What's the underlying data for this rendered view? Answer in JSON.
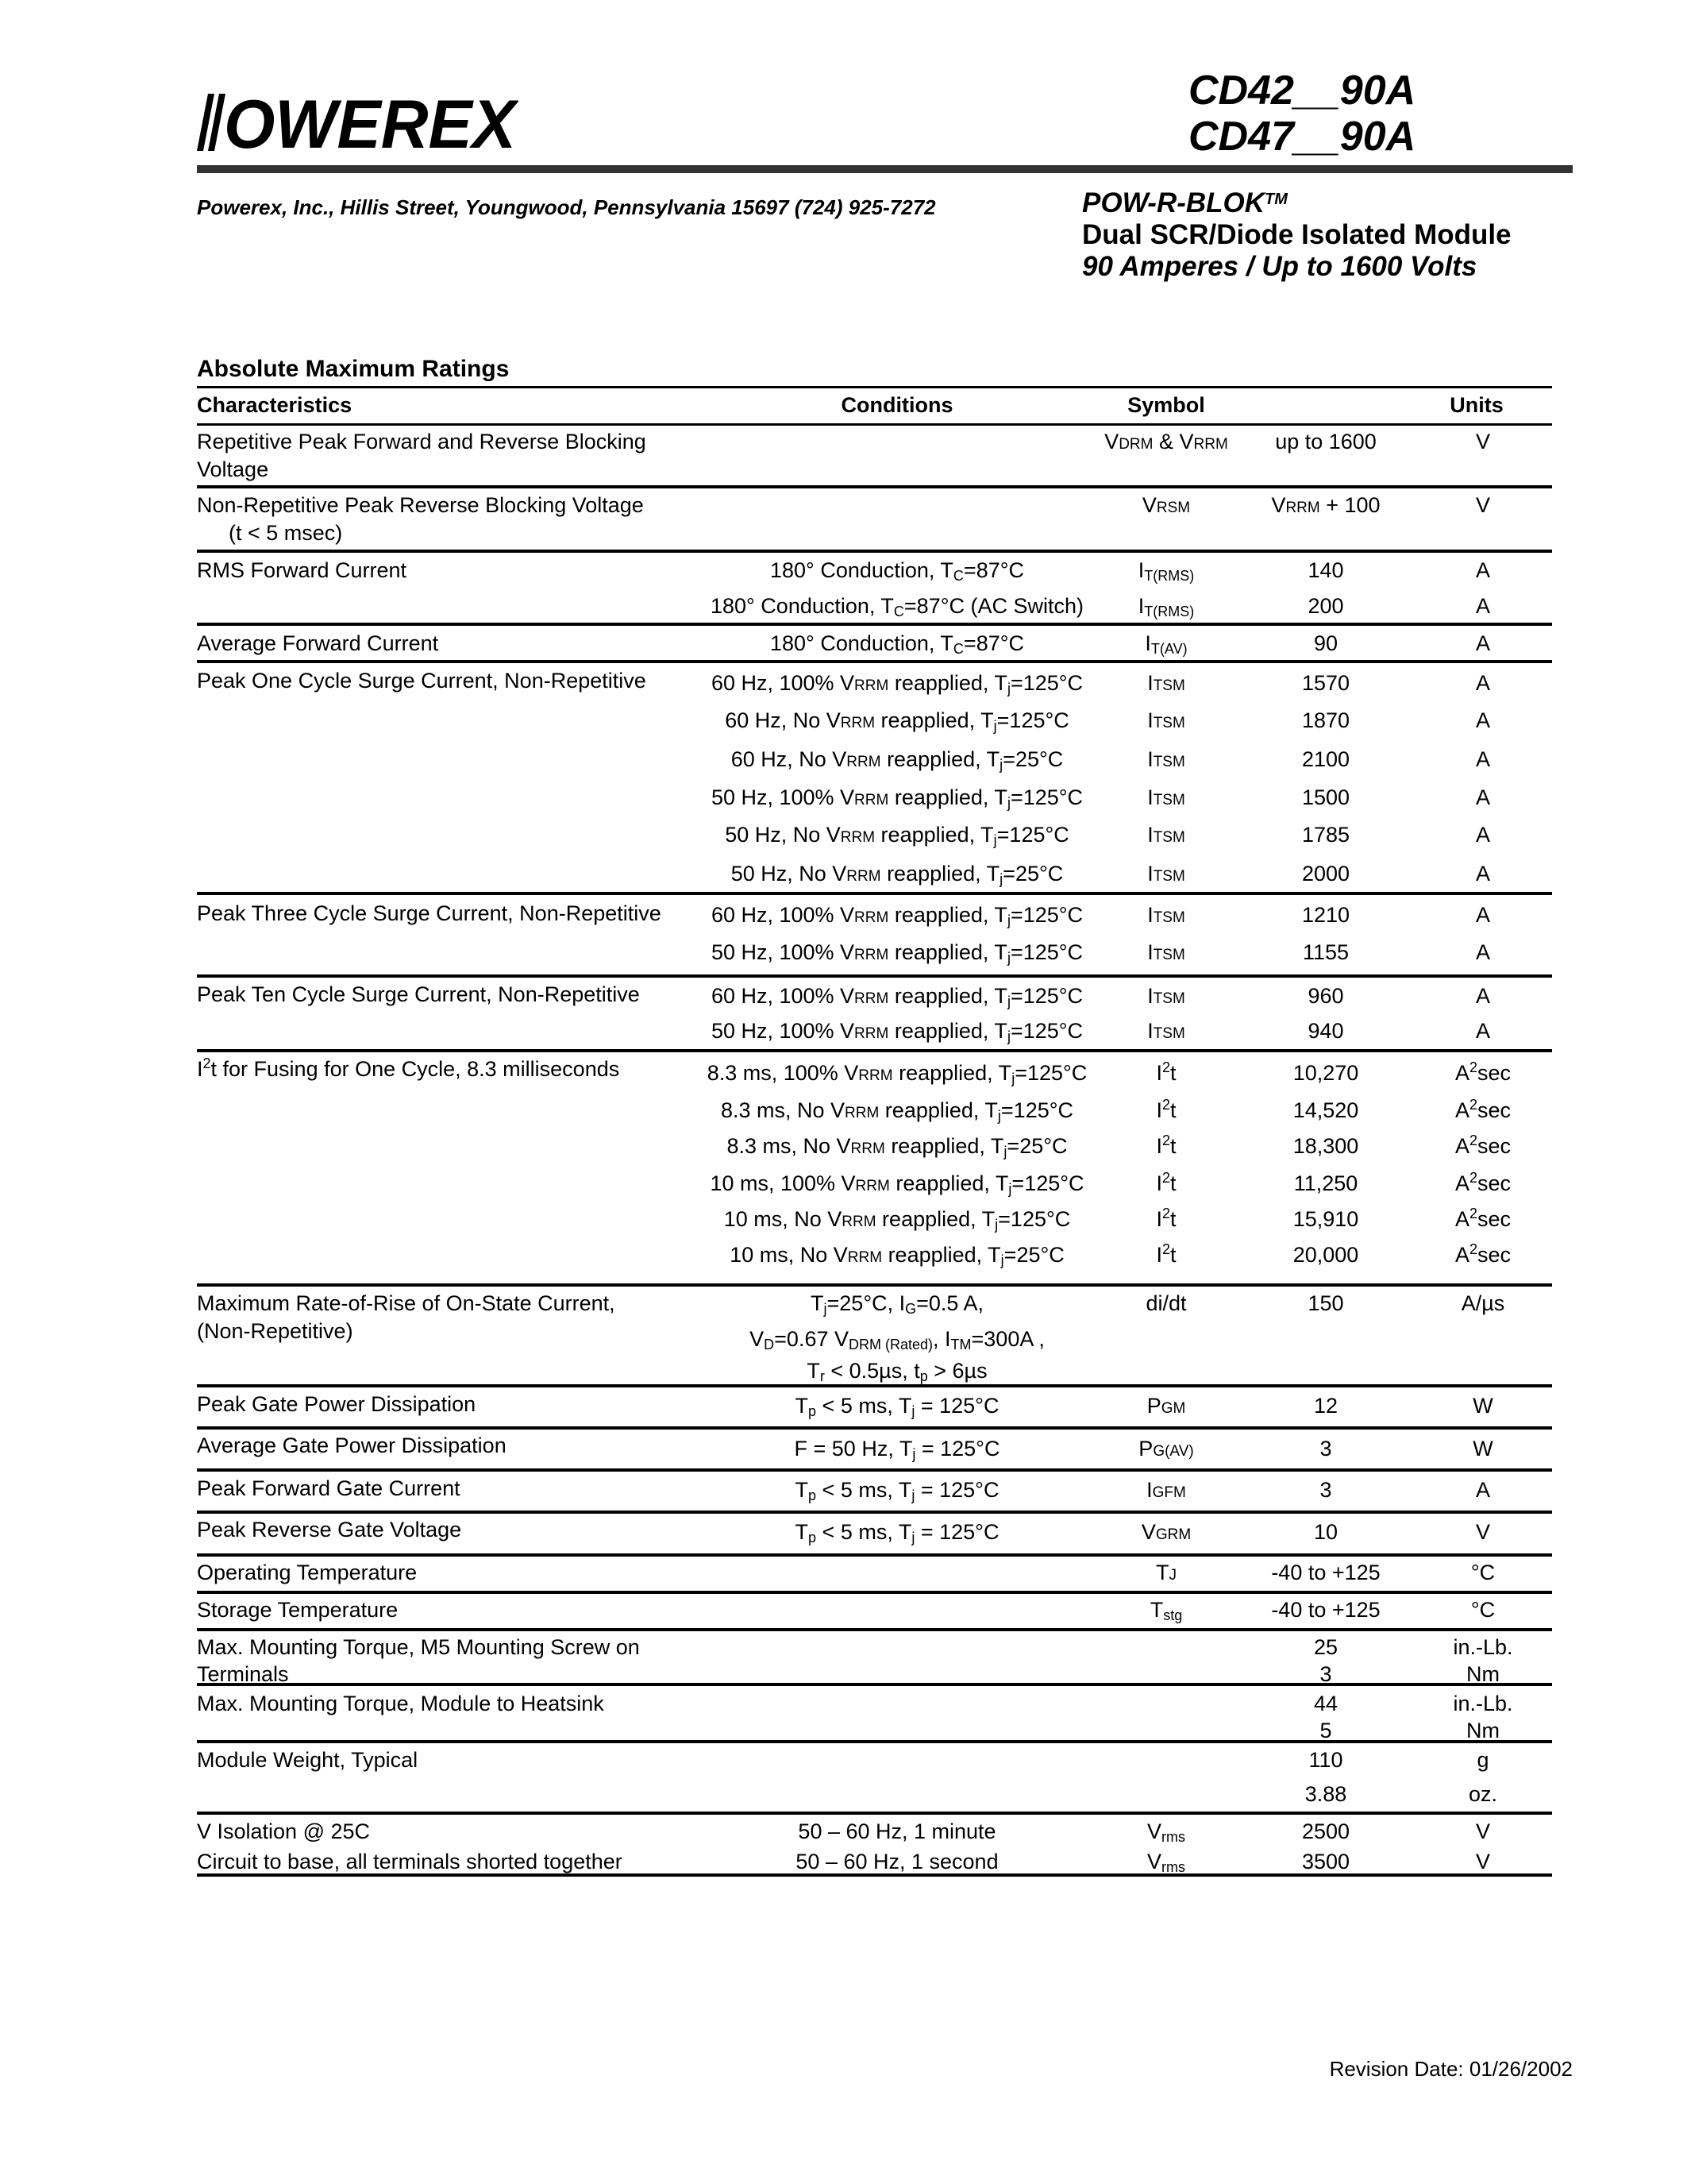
{
  "header": {
    "logo_text": "POWEREX",
    "part_numbers": [
      "CD42__90A",
      "CD47__90A"
    ],
    "address": "Powerex, Inc., Hillis Street, Youngwood, Pennsylvania 15697  (724) 925-7272",
    "product_name": "POW-R-BLOK",
    "product_tm": "TM",
    "product_desc": "Dual SCR/Diode Isolated Module",
    "product_rating": "90 Amperes / Up to 1600 Volts"
  },
  "section_title": "Absolute Maximum Ratings",
  "table": {
    "headers": {
      "characteristics": "Characteristics",
      "conditions": "Conditions",
      "symbol": "Symbol",
      "units": "Units"
    },
    "groups": [
      {
        "char": [
          "Repetitive Peak Forward and Reverse Blocking",
          "Voltage"
        ],
        "rows": [
          {
            "cond": [],
            "sym": [
              "V",
              {
                "sc": "DRM"
              },
              " & V",
              {
                "sc": "RRM"
              }
            ],
            "val": "up to 1600",
            "unit": "V"
          }
        ]
      },
      {
        "char": [
          "Non-Repetitive Peak Reverse Blocking Voltage",
          "(t <  5 msec)"
        ],
        "rows": [
          {
            "cond": [],
            "sym": [
              "V",
              {
                "sc": "RSM"
              }
            ],
            "val": "Vᴿᴿᴹ  + 100",
            "val_parts": [
              "V",
              {
                "sc": "RRM"
              },
              "  + 100"
            ],
            "unit": "V"
          }
        ]
      },
      {
        "char": [
          "RMS Forward Current"
        ],
        "rows": [
          {
            "cond": [
              "180° Conduction, T",
              {
                "sub": "C"
              },
              "=87°C"
            ],
            "sym": [
              "I",
              {
                "sub": "T(RMS)"
              }
            ],
            "val": "140",
            "unit": "A"
          },
          {
            "cond": [
              "180° Conduction, T",
              {
                "sub": "C"
              },
              "=87°C (AC Switch)"
            ],
            "sym": [
              "I",
              {
                "sub": "T(RMS)"
              }
            ],
            "val": "200",
            "unit": "A"
          }
        ]
      },
      {
        "char": [
          "Average Forward Current"
        ],
        "rows": [
          {
            "cond": [
              "180° Conduction, T",
              {
                "sub": "C"
              },
              "=87°C"
            ],
            "sym": [
              "I",
              {
                "sub": "T(AV)"
              }
            ],
            "val": "90",
            "unit": "A"
          }
        ]
      },
      {
        "char": [
          "Peak One Cycle Surge Current,  Non-Repetitive"
        ],
        "rows": [
          {
            "cond": [
              "60 Hz, 100% V",
              {
                "sc": "RRM"
              },
              " reapplied, T",
              {
                "sub": "j"
              },
              "=125°C"
            ],
            "sym": [
              "I",
              {
                "sc": "TSM"
              }
            ],
            "val": "1570",
            "unit": "A"
          },
          {
            "cond": [
              "60 Hz, No V",
              {
                "sc": "RRM"
              },
              " reapplied, T",
              {
                "sub": "j"
              },
              "=125°C"
            ],
            "sym": [
              "I",
              {
                "sc": "TSM"
              }
            ],
            "val": "1870",
            "unit": "A"
          },
          {
            "cond": [
              "60 Hz, No V",
              {
                "sc": "RRM"
              },
              " reapplied, T",
              {
                "sub": "j"
              },
              "=25°C"
            ],
            "sym": [
              "I",
              {
                "sc": "TSM"
              }
            ],
            "val": "2100",
            "unit": "A"
          },
          {
            "cond": [
              "50 Hz, 100% V",
              {
                "sc": "RRM"
              },
              " reapplied, T",
              {
                "sub": "j"
              },
              "=125°C"
            ],
            "sym": [
              "I",
              {
                "sc": "TSM"
              }
            ],
            "val": "1500",
            "unit": "A"
          },
          {
            "cond": [
              "50 Hz, No V",
              {
                "sc": "RRM"
              },
              " reapplied, T",
              {
                "sub": "j"
              },
              "=125°C"
            ],
            "sym": [
              "I",
              {
                "sc": "TSM"
              }
            ],
            "val": "1785",
            "unit": "A"
          },
          {
            "cond": [
              "50 Hz, No V",
              {
                "sc": "RRM"
              },
              " reapplied, T",
              {
                "sub": "j"
              },
              "=25°C"
            ],
            "sym": [
              "I",
              {
                "sc": "TSM"
              }
            ],
            "val": "2000",
            "unit": "A"
          }
        ]
      },
      {
        "char": [
          "Peak Three Cycle Surge Current,  Non-Repetitive"
        ],
        "rows": [
          {
            "cond": [
              "60 Hz, 100% V",
              {
                "sc": "RRM"
              },
              " reapplied, T",
              {
                "sub": "j"
              },
              "=125°C"
            ],
            "sym": [
              "I",
              {
                "sc": "TSM"
              }
            ],
            "val": "1210",
            "unit": "A"
          },
          {
            "cond": [
              "50 Hz, 100% V",
              {
                "sc": "RRM"
              },
              " reapplied, T",
              {
                "sub": "j"
              },
              "=125°C"
            ],
            "sym": [
              "I",
              {
                "sc": "TSM"
              }
            ],
            "val": "1155",
            "unit": "A"
          }
        ]
      },
      {
        "char": [
          "Peak Ten Cycle Surge Current,  Non-Repetitive"
        ],
        "rows": [
          {
            "cond": [
              "60 Hz, 100% V",
              {
                "sc": "RRM"
              },
              " reapplied, T",
              {
                "sub": "j"
              },
              "=125°C"
            ],
            "sym": [
              "I",
              {
                "sc": "TSM"
              }
            ],
            "val": "960",
            "unit": "A"
          },
          {
            "cond": [
              "50 Hz, 100% V",
              {
                "sc": "RRM"
              },
              " reapplied, T",
              {
                "sub": "j"
              },
              "=125°C"
            ],
            "sym": [
              "I",
              {
                "sc": "TSM"
              }
            ],
            "val": "940",
            "unit": "A"
          }
        ]
      },
      {
        "char": [
          [
            "I",
            {
              "sup": "2"
            },
            "t for Fusing for One Cycle,   8.3 milliseconds"
          ]
        ],
        "rows": [
          {
            "cond": [
              "8.3 ms, 100% V",
              {
                "sc": "RRM"
              },
              " reapplied, T",
              {
                "sub": "j"
              },
              "=125°C"
            ],
            "sym": [
              "I",
              {
                "sup": "2"
              },
              "t"
            ],
            "val": "10,270",
            "unit": [
              "A",
              {
                "sup": "2"
              },
              "sec"
            ]
          },
          {
            "cond": [
              "8.3 ms, No V",
              {
                "sc": "RRM"
              },
              " reapplied, T",
              {
                "sub": "j"
              },
              "=125°C"
            ],
            "sym": [
              "I",
              {
                "sup": "2"
              },
              "t"
            ],
            "val": "14,520",
            "unit": [
              "A",
              {
                "sup": "2"
              },
              "sec"
            ]
          },
          {
            "cond": [
              "8.3 ms, No V",
              {
                "sc": "RRM"
              },
              " reapplied, T",
              {
                "sub": "j"
              },
              "=25°C"
            ],
            "sym": [
              "I",
              {
                "sup": "2"
              },
              "t"
            ],
            "val": "18,300",
            "unit": [
              "A",
              {
                "sup": "2"
              },
              "sec"
            ]
          },
          {
            "cond": [
              "10 ms, 100% V",
              {
                "sc": "RRM"
              },
              " reapplied, T",
              {
                "sub": "j"
              },
              "=125°C"
            ],
            "sym": [
              "I",
              {
                "sup": "2"
              },
              "t"
            ],
            "val": "11,250",
            "unit": [
              "A",
              {
                "sup": "2"
              },
              "sec"
            ]
          },
          {
            "cond": [
              "10 ms, No V",
              {
                "sc": "RRM"
              },
              " reapplied, T",
              {
                "sub": "j"
              },
              "=125°C"
            ],
            "sym": [
              "I",
              {
                "sup": "2"
              },
              "t"
            ],
            "val": "15,910",
            "unit": [
              "A",
              {
                "sup": "2"
              },
              "sec"
            ]
          },
          {
            "cond": [
              "10 ms, No V",
              {
                "sc": "RRM"
              },
              " reapplied, T",
              {
                "sub": "j"
              },
              "=25°C"
            ],
            "sym": [
              "I",
              {
                "sup": "2"
              },
              "t"
            ],
            "val": "20,000",
            "unit": [
              "A",
              {
                "sup": "2"
              },
              "sec"
            ]
          }
        ]
      },
      {
        "char": [
          "Maximum Rate-of-Rise of On-State Current,",
          "(Non-Repetitive)"
        ],
        "rows": [
          {
            "cond": [
              "T",
              {
                "sub": "j"
              },
              "=25°C, I",
              {
                "sub": "G"
              },
              "=0.5 A,"
            ],
            "sym": [
              "di/dt"
            ],
            "val": "150",
            "unit": "A/µs"
          },
          {
            "cond": [
              "V",
              {
                "sub": "D"
              },
              "=0.67 V",
              {
                "sub": "DRM (Rated)"
              },
              ", I",
              {
                "sub": "TM"
              },
              "=300A ,"
            ]
          },
          {
            "cond": [
              "T",
              {
                "sub": "r"
              },
              " < 0.5µs, t",
              {
                "sub": "p"
              },
              " > 6µs"
            ]
          }
        ]
      },
      {
        "char": [
          "Peak Gate Power Dissipation"
        ],
        "rows": [
          {
            "cond": [
              "T",
              {
                "sub": "p"
              },
              " < 5 ms, T",
              {
                "sub": "j"
              },
              " = 125°C"
            ],
            "sym": [
              "P",
              {
                "sc": "GM"
              }
            ],
            "val": "12",
            "unit": "W"
          }
        ]
      },
      {
        "char": [
          "Average Gate Power Dissipation"
        ],
        "rows": [
          {
            "cond": [
              "F = 50 Hz, T",
              {
                "sub": "j"
              },
              " = 125°C"
            ],
            "sym": [
              "P",
              {
                "sc": "G(AV)"
              }
            ],
            "val": "3",
            "unit": "W"
          }
        ]
      },
      {
        "char": [
          "Peak Forward Gate Current"
        ],
        "rows": [
          {
            "cond": [
              "T",
              {
                "sub": "p"
              },
              " < 5 ms, T",
              {
                "sub": "j"
              },
              " = 125°C"
            ],
            "sym": [
              "I",
              {
                "sc": "GFM"
              }
            ],
            "val": "3",
            "unit": "A"
          }
        ]
      },
      {
        "char": [
          "Peak Reverse Gate Voltage"
        ],
        "rows": [
          {
            "cond": [
              "T",
              {
                "sub": "p"
              },
              " < 5 ms, T",
              {
                "sub": "j"
              },
              " = 125°C"
            ],
            "sym": [
              "V",
              {
                "sc": "GRM"
              }
            ],
            "val": "10",
            "unit": "V"
          }
        ]
      },
      {
        "char": [
          "Operating Temperature"
        ],
        "rows": [
          {
            "cond": [],
            "sym": [
              "T",
              {
                "sc": "J"
              }
            ],
            "val": "-40 to +125",
            "unit": "°C"
          }
        ]
      },
      {
        "char": [
          "Storage Temperature"
        ],
        "rows": [
          {
            "cond": [],
            "sym": [
              "T",
              {
                "sub": "stg"
              }
            ],
            "val": "-40 to +125",
            "unit": "°C"
          }
        ]
      },
      {
        "char": [
          "Max. Mounting Torque, M5 Mounting Screw on",
          "Terminals"
        ],
        "rows": [
          {
            "cond": [],
            "val": "25",
            "unit": "in.-Lb."
          },
          {
            "cond": [],
            "val": "3",
            "unit": "Nm"
          }
        ]
      },
      {
        "char": [
          "Max. Mounting Torque, Module to Heatsink"
        ],
        "rows": [
          {
            "cond": [],
            "val": "44",
            "unit": "in.-Lb."
          },
          {
            "cond": [],
            "val": "5",
            "unit": "Nm"
          }
        ]
      },
      {
        "char": [
          "Module Weight,  Typical"
        ],
        "rows": [
          {
            "cond": [],
            "val": "110",
            "unit": "g"
          },
          {
            "cond": [],
            "val": "3.88",
            "unit": "oz."
          }
        ]
      },
      {
        "char": [
          "V Isolation @ 25C",
          "Circuit to base, all terminals shorted together"
        ],
        "rows": [
          {
            "cond": [
              "50 – 60 Hz, 1 minute"
            ],
            "sym": [
              "V",
              {
                "sub": "rms"
              }
            ],
            "val": "2500",
            "unit": "V"
          },
          {
            "cond": [
              "50 – 60 Hz, 1 second"
            ],
            "sym": [
              "V",
              {
                "sub": "rms"
              }
            ],
            "val": "3500",
            "unit": "V"
          }
        ]
      }
    ]
  },
  "footer": {
    "revision": "Revision Date:  01/26/2002"
  }
}
